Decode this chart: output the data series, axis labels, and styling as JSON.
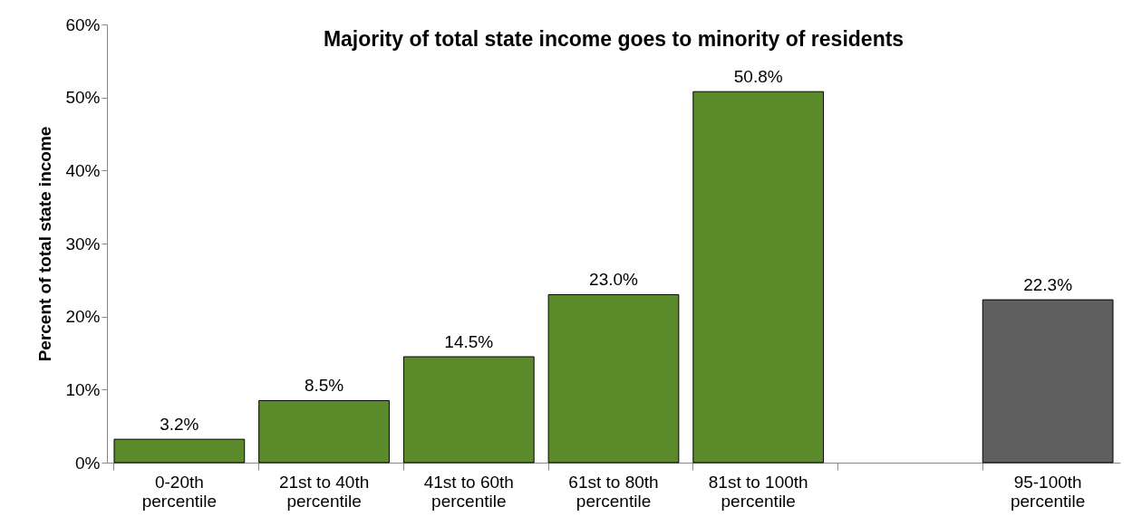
{
  "chart_data": {
    "type": "bar",
    "title": "Majority of total state income goes to minority of residents",
    "ylabel": "Percent of total state income",
    "categories": [
      "0-20th percentile",
      "21st to 40th percentile",
      "41st to 60th percentile",
      "61st to 80th percentile",
      "81st to 100th percentile",
      null,
      "95-100th percentile"
    ],
    "values": [
      3.2,
      8.5,
      14.5,
      23.0,
      50.8,
      null,
      22.3
    ],
    "colors": [
      "#5b8a2b",
      "#5b8a2b",
      "#5b8a2b",
      "#5b8a2b",
      "#5b8a2b",
      null,
      "#5f5f5f"
    ],
    "value_labels": [
      "3.2%",
      "8.5%",
      "14.5%",
      "23.0%",
      "50.8%",
      null,
      "22.3%"
    ],
    "ylim": [
      0,
      60
    ],
    "yticks": [
      {
        "value": 0,
        "label": "0%"
      },
      {
        "value": 10,
        "label": "10%"
      },
      {
        "value": 20,
        "label": "20%"
      },
      {
        "value": 30,
        "label": "30%"
      },
      {
        "value": 40,
        "label": "40%"
      },
      {
        "value": 50,
        "label": "50%"
      },
      {
        "value": 60,
        "label": "60%"
      }
    ],
    "grid": false
  }
}
